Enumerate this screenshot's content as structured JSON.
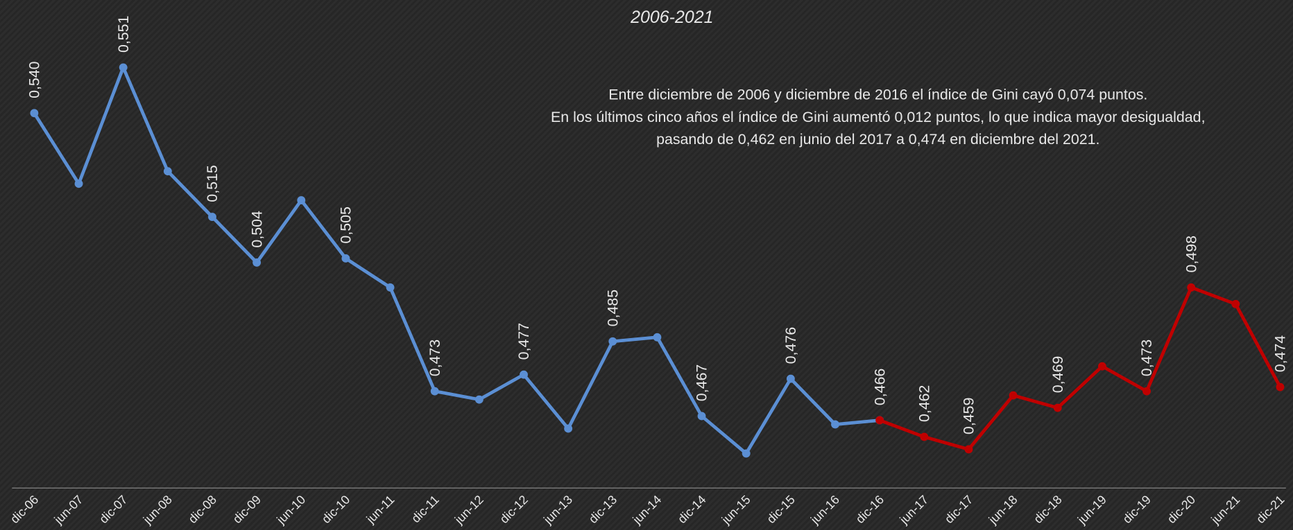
{
  "chart_data": {
    "type": "line",
    "title": "2006-2021",
    "annotations": [
      "Entre diciembre de 2006 y diciembre de 2016 el índice de Gini cayó 0,074 puntos.",
      "En los últimos cinco años el índice de Gini aumentó 0,012 puntos, lo que indica mayor desigualdad,",
      "pasando de 0,462 en junio del 2017 a 0,474 en diciembre del 2021."
    ],
    "categories": [
      "dic-06",
      "jun-07",
      "dic-07",
      "jun-08",
      "dic-08",
      "dic-09",
      "jun-10",
      "dic-10",
      "jun-11",
      "dic-11",
      "jun-12",
      "dic-12",
      "jun-13",
      "dic-13",
      "jun-14",
      "dic-14",
      "jun-15",
      "dic-15",
      "jun-16",
      "dic-16",
      "jun-17",
      "dic-17",
      "jun-18",
      "dic-18",
      "jun-19",
      "dic-19",
      "dic-20",
      "jun-21",
      "dic-21"
    ],
    "series": [
      {
        "color": "#5b8fd4",
        "values": [
          0.54,
          0.523,
          0.551,
          0.526,
          0.515,
          0.504,
          0.519,
          0.505,
          0.498,
          0.473,
          0.471,
          0.477,
          0.464,
          0.485,
          0.486,
          0.467,
          0.458,
          0.476,
          0.465,
          0.466,
          null,
          null,
          null,
          null,
          null,
          null,
          null,
          null,
          null
        ],
        "value_labels": [
          "0,540",
          null,
          "0,551",
          null,
          "0,515",
          "0,504",
          null,
          "0,505",
          null,
          "0,473",
          null,
          "0,477",
          null,
          "0,485",
          null,
          "0,467",
          null,
          "0,476",
          null,
          "0,466",
          null,
          null,
          null,
          null,
          null,
          null,
          null,
          null,
          null
        ]
      },
      {
        "color": "#c00000",
        "values": [
          null,
          null,
          null,
          null,
          null,
          null,
          null,
          null,
          null,
          null,
          null,
          null,
          null,
          null,
          null,
          null,
          null,
          null,
          null,
          0.466,
          0.462,
          0.459,
          0.472,
          0.469,
          0.479,
          0.473,
          0.498,
          0.494,
          0.474
        ],
        "value_labels": [
          null,
          null,
          null,
          null,
          null,
          null,
          null,
          null,
          null,
          null,
          null,
          null,
          null,
          null,
          null,
          null,
          null,
          null,
          null,
          null,
          "0,462",
          "0,459",
          null,
          "0,469",
          null,
          "0,473",
          "0,498",
          null,
          "0,474"
        ]
      }
    ]
  }
}
